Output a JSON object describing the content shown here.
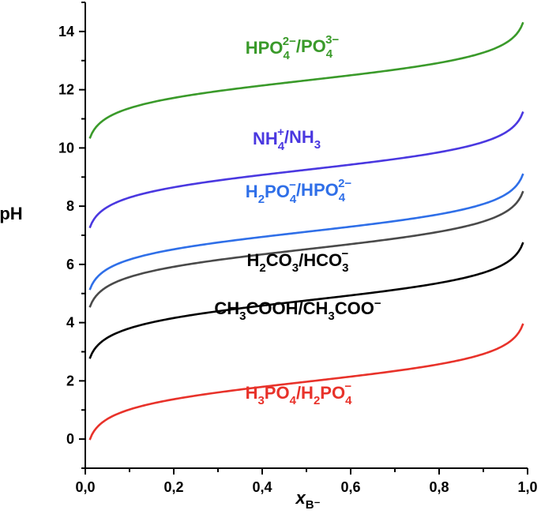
{
  "chart_data": {
    "type": "line",
    "xlabel": "x",
    "xlabel_sub": "B⁻",
    "ylabel": "pH",
    "xlim": [
      0.0,
      1.0
    ],
    "ylim": [
      -1.0,
      15.0
    ],
    "x_ticks": [
      0.0,
      0.2,
      0.4,
      0.6,
      0.8,
      1.0
    ],
    "x_tick_labels": [
      "0,0",
      "0,2",
      "0,4",
      "0,6",
      "0,8",
      "1,0"
    ],
    "y_ticks": [
      0,
      2,
      4,
      6,
      8,
      10,
      12,
      14
    ],
    "y_tick_labels": [
      "0",
      "2",
      "4",
      "6",
      "8",
      "10",
      "12",
      "14"
    ],
    "x_range_plotted": [
      0.01,
      0.99
    ],
    "grid": false,
    "series": [
      {
        "name": "HPO4 2−/PO4 3−",
        "pKa": 12.32,
        "color": "#3a9a2a",
        "label_parts": [
          [
            "HPO",
            "n"
          ],
          [
            "4",
            "sub"
          ],
          [
            "2−",
            "sup"
          ],
          [
            "/PO",
            "n"
          ],
          [
            "4",
            "sub"
          ],
          [
            "3−",
            "sup"
          ]
        ]
      },
      {
        "name": "NH4+/NH3",
        "pKa": 9.25,
        "color": "#4a38e0",
        "label_parts": [
          [
            "NH",
            "n"
          ],
          [
            "4",
            "sub"
          ],
          [
            "+",
            "sup"
          ],
          [
            "/NH",
            "n"
          ],
          [
            "3",
            "sub"
          ]
        ]
      },
      {
        "name": "H2PO4−/HPO4 2−",
        "pKa": 7.12,
        "color": "#2f6fe8",
        "label_parts": [
          [
            "H",
            "n"
          ],
          [
            "2",
            "sub"
          ],
          [
            "PO",
            "n"
          ],
          [
            "4",
            "sub"
          ],
          [
            "−",
            "sup"
          ],
          [
            "/HPO",
            "n"
          ],
          [
            "4",
            "sub"
          ],
          [
            "2−",
            "sup"
          ]
        ]
      },
      {
        "name": "H2CO3/HCO3−",
        "pKa": 6.52,
        "color": "#4a4a4a",
        "label_parts": [
          [
            "H",
            "n"
          ],
          [
            "2",
            "sub"
          ],
          [
            "CO",
            "n"
          ],
          [
            "3",
            "sub"
          ],
          [
            "/HCO",
            "n"
          ],
          [
            "3",
            "sub"
          ],
          [
            "−",
            "sup"
          ]
        ],
        "label_color": "#000000"
      },
      {
        "name": "CH3COOH/CH3COO−",
        "pKa": 4.76,
        "color": "#000000",
        "label_parts": [
          [
            "CH",
            "n"
          ],
          [
            "3",
            "sub"
          ],
          [
            "COOH/CH",
            "n"
          ],
          [
            "3",
            "sub"
          ],
          [
            "COO",
            "n"
          ],
          [
            "−",
            "sup"
          ]
        ]
      },
      {
        "name": "H3PO4/H2PO4−",
        "pKa": 1.97,
        "color": "#e8322a",
        "label_parts": [
          [
            "H",
            "n"
          ],
          [
            "3",
            "sub"
          ],
          [
            "PO",
            "n"
          ],
          [
            "4",
            "sub"
          ],
          [
            "/H",
            "n"
          ],
          [
            "2",
            "sub"
          ],
          [
            "PO",
            "n"
          ],
          [
            "4",
            "sub"
          ],
          [
            "−",
            "sup"
          ]
        ]
      }
    ]
  }
}
